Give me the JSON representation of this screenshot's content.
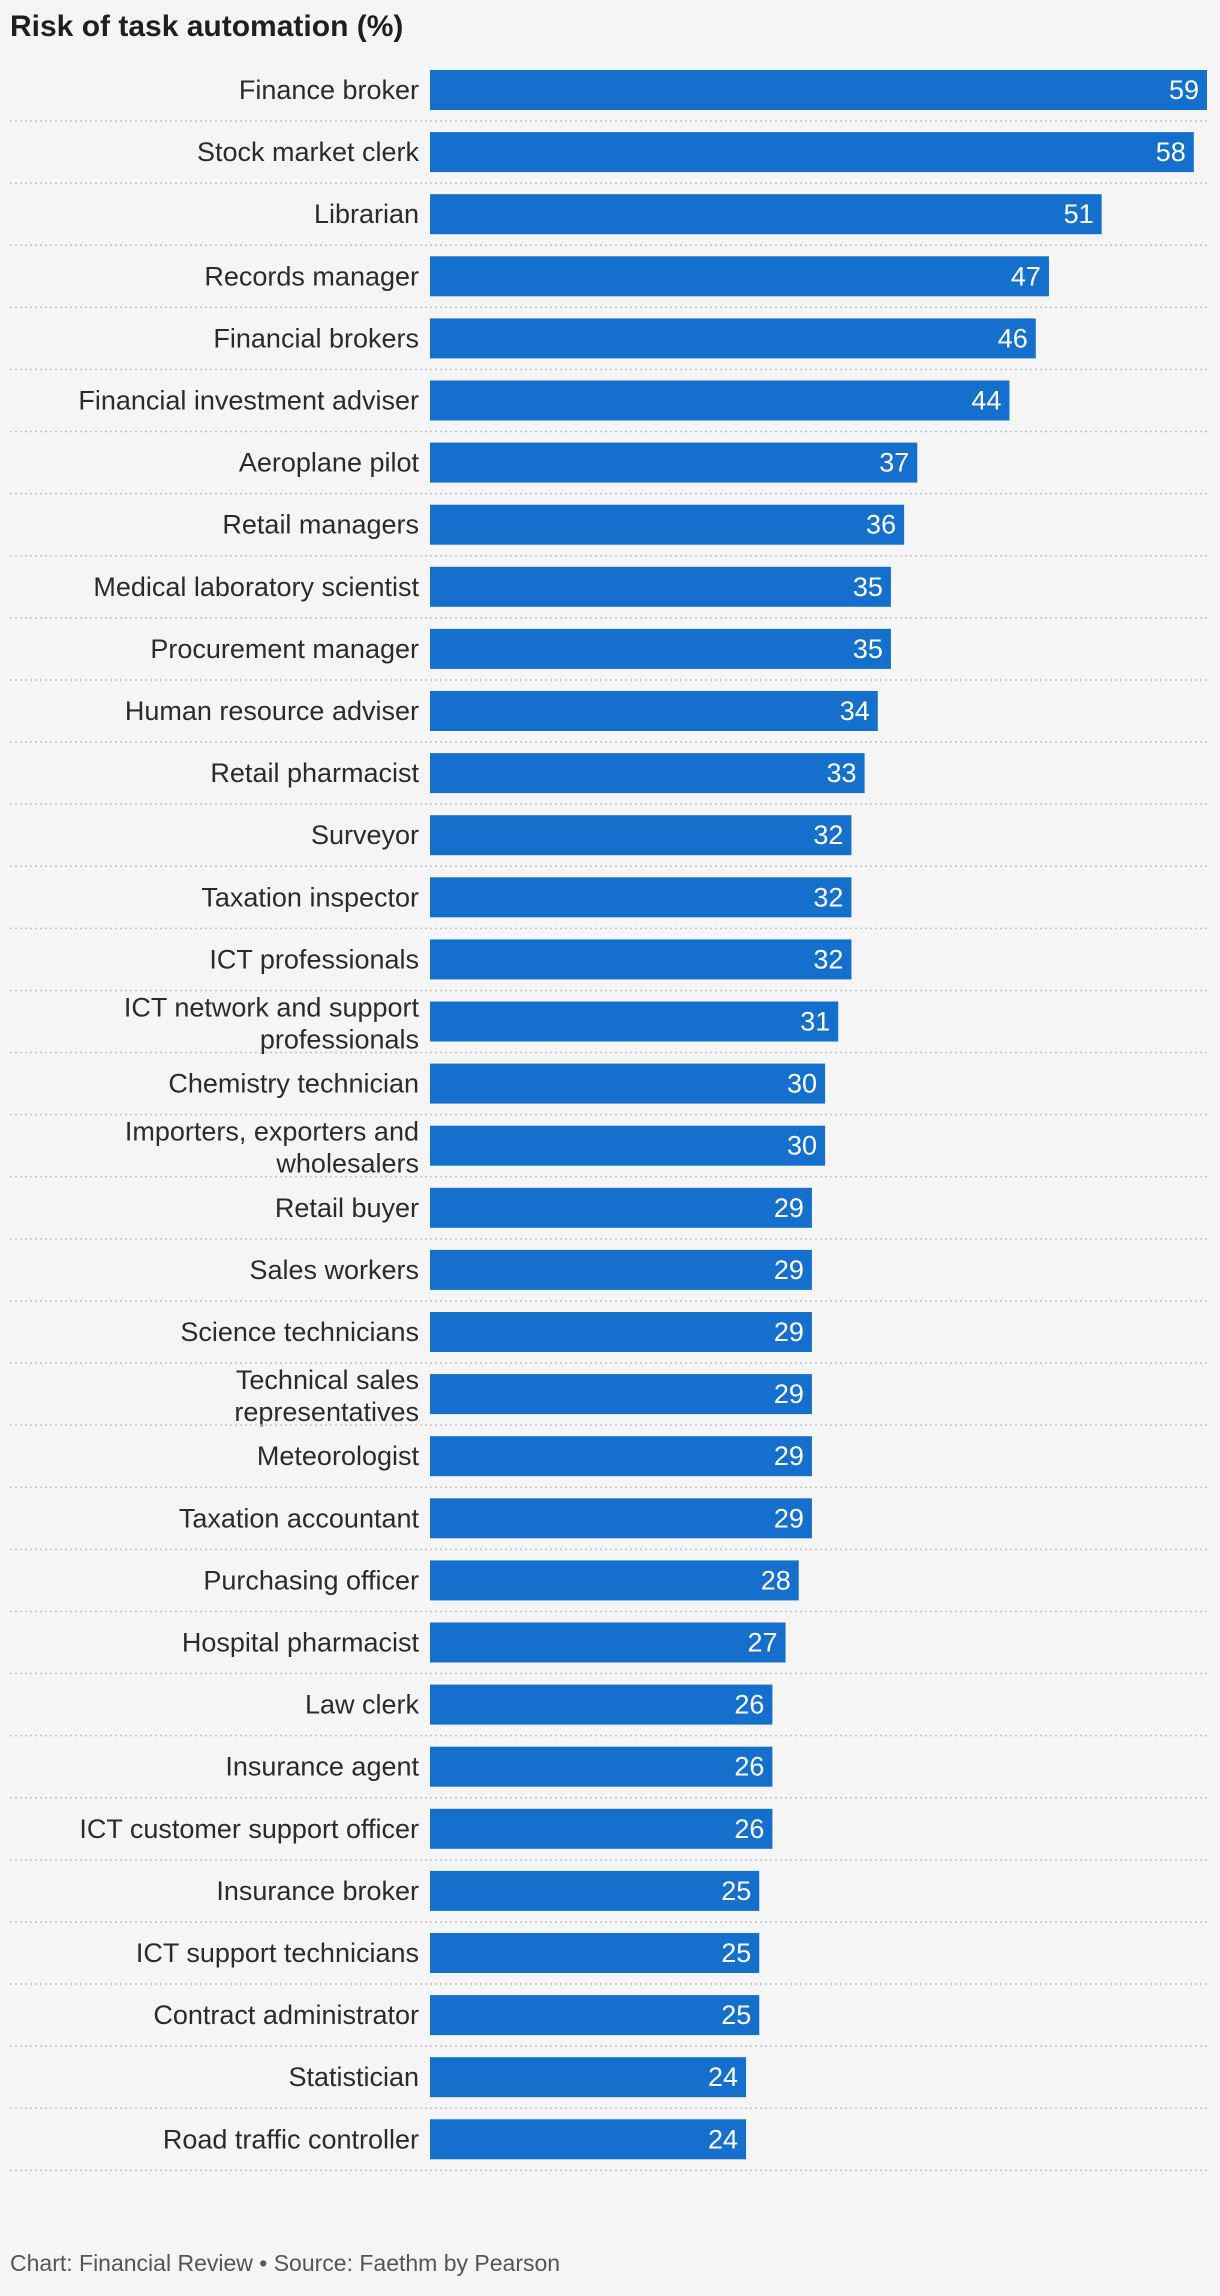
{
  "chart_data": {
    "type": "bar",
    "orientation": "horizontal",
    "title": "Risk of task automation (%)",
    "bar_color": "#1570cd",
    "categories": [
      "Finance broker",
      "Stock market clerk",
      "Librarian",
      "Records manager",
      "Financial brokers",
      "Financial investment adviser",
      "Aeroplane pilot",
      "Retail managers",
      "Medical laboratory scientist",
      "Procurement manager",
      "Human resource adviser",
      "Retail pharmacist",
      "Surveyor",
      "Taxation inspector",
      "ICT professionals",
      "ICT network and support professionals",
      "Chemistry technician",
      "Importers, exporters and wholesalers",
      "Retail buyer",
      "Sales workers",
      "Science technicians",
      "Technical sales representatives",
      "Meteorologist",
      "Taxation accountant",
      "Purchasing officer",
      "Hospital pharmacist",
      "Law clerk",
      "Insurance agent",
      "ICT customer support officer",
      "Insurance broker",
      "ICT support technicians",
      "Contract administrator",
      "Statistician",
      "Road traffic controller"
    ],
    "values": [
      59,
      58,
      51,
      47,
      46,
      44,
      37,
      36,
      35,
      35,
      34,
      33,
      32,
      32,
      32,
      31,
      30,
      30,
      29,
      29,
      29,
      29,
      29,
      29,
      28,
      27,
      26,
      26,
      26,
      25,
      25,
      25,
      24,
      24
    ],
    "xlim": [
      0,
      59
    ],
    "grid": "dotted row separators",
    "legend": "none"
  },
  "footer": {
    "text": "Chart: Financial Review • Source: Faethm by Pearson"
  }
}
